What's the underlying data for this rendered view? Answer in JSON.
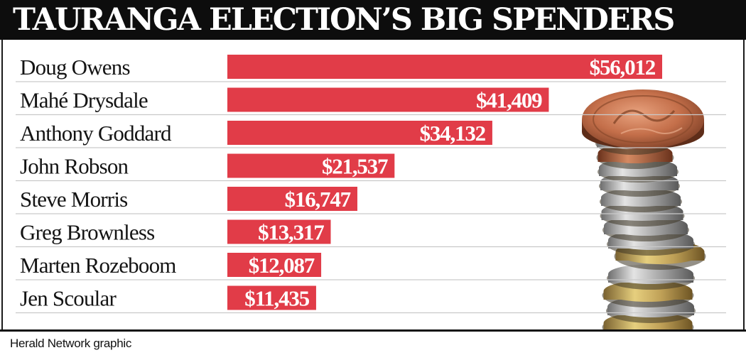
{
  "header": {
    "title": "TAURANGA ELECTION’S BIG SPENDERS"
  },
  "footer": {
    "credit": "Herald Network graphic"
  },
  "colors": {
    "bar": "#e13c48",
    "title_bg": "#0d0d0d",
    "title_text": "#ffffff",
    "bar_label": "#ffffff"
  },
  "chart_data": {
    "type": "bar",
    "orientation": "horizontal",
    "title": "TAURANGA ELECTION’S BIG SPENDERS",
    "categories": [
      "Doug Owens",
      "Mahé Drysdale",
      "Anthony Goddard",
      "John Robson",
      "Steve Morris",
      "Greg Brownless",
      "Marten Rozeboom",
      "Jen Scoular"
    ],
    "values": [
      56012,
      41409,
      34132,
      21537,
      16747,
      13317,
      12087,
      11435
    ],
    "value_labels": [
      "$56,012",
      "$41,409",
      "$34,132",
      "$21,537",
      "$16,747",
      "$13,317",
      "$12,087",
      "$11,435"
    ],
    "xlim": [
      0,
      56012
    ],
    "grid": false,
    "legend": "none"
  }
}
